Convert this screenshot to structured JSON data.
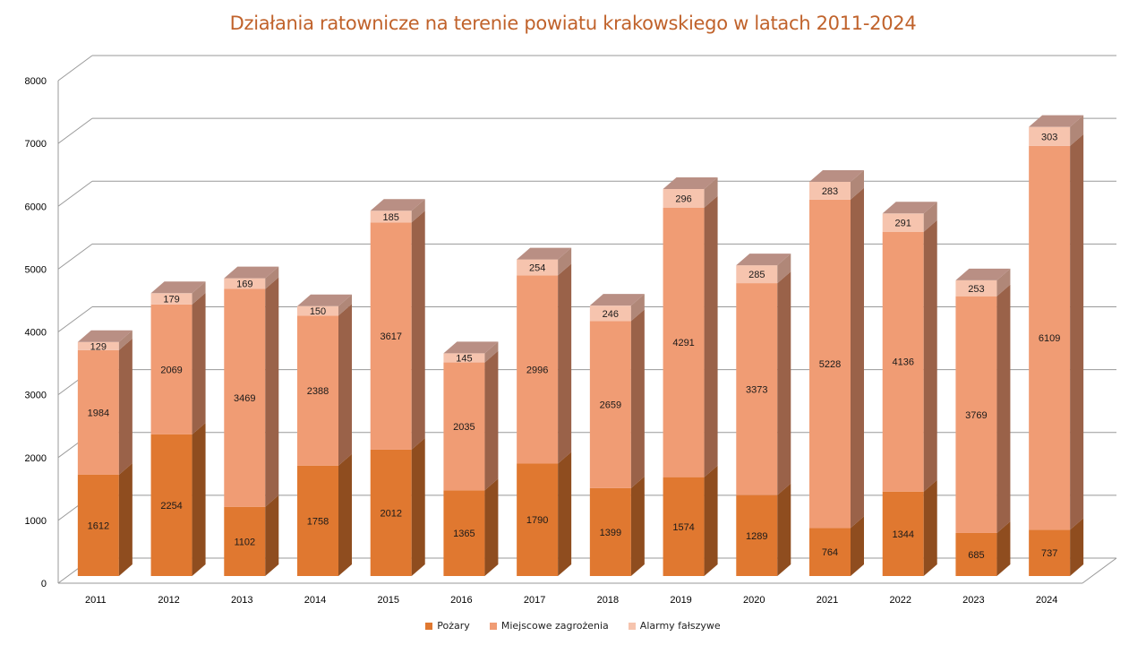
{
  "chart_data": {
    "type": "bar",
    "subtype": "stacked-3d",
    "title": "Działania ratownicze na terenie powiatu krakowskiego w latach 2011-2024",
    "xlabel": "",
    "ylabel": "",
    "ylim": [
      0,
      8000
    ],
    "yticks": [
      0,
      1000,
      2000,
      3000,
      4000,
      5000,
      6000,
      7000,
      8000
    ],
    "grid": true,
    "legend_position": "bottom",
    "categories": [
      "2011",
      "2012",
      "2013",
      "2014",
      "2015",
      "2016",
      "2017",
      "2018",
      "2019",
      "2020",
      "2021",
      "2022",
      "2023",
      "2024"
    ],
    "series": [
      {
        "name": "Pożary",
        "color": "#e07830",
        "values": [
          1612,
          2254,
          1102,
          1758,
          2012,
          1365,
          1790,
          1399,
          1574,
          1289,
          764,
          1344,
          685,
          737
        ]
      },
      {
        "name": "Miejscowe zagrożenia",
        "color": "#f09c74",
        "values": [
          1984,
          2069,
          3469,
          2388,
          3617,
          2035,
          2996,
          2659,
          4291,
          3373,
          5228,
          4136,
          3769,
          6109
        ]
      },
      {
        "name": "Alarmy fałszywe",
        "color": "#f6c4ae",
        "values": [
          129,
          179,
          169,
          150,
          185,
          145,
          254,
          246,
          296,
          285,
          283,
          291,
          253,
          303
        ]
      }
    ]
  }
}
